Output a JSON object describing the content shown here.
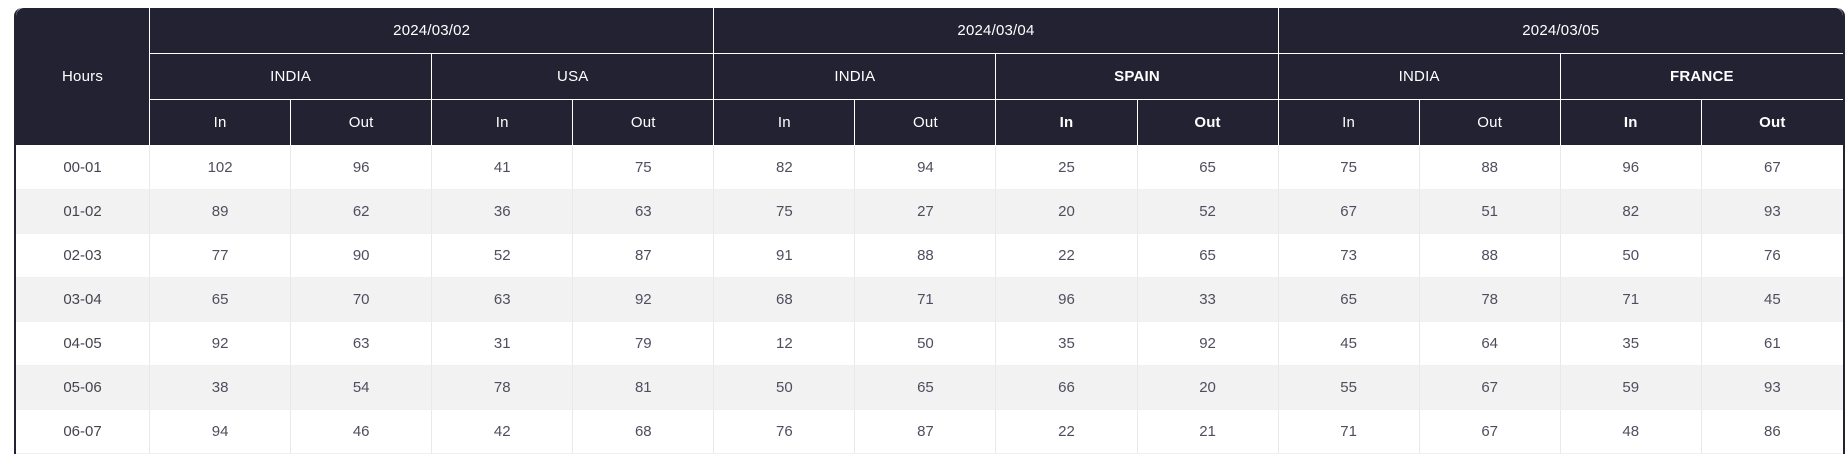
{
  "colors": {
    "header_bg": "#232233",
    "header_text": "#ffffff",
    "header_divider": "#ffffff",
    "outer_border": "#232233",
    "body_text": "#4e4e5e",
    "hours_text": "#44444f",
    "row_bg": "#ffffff",
    "row_alt_bg": "#f2f2f2",
    "cell_border": "#e9e9ed",
    "row_divider": "#f0f0f2"
  },
  "table": {
    "hours_label": "Hours",
    "in_label": "In",
    "out_label": "Out",
    "date_groups": [
      {
        "date": "2024/03/02",
        "countries": [
          {
            "name": "INDIA",
            "bold": false
          },
          {
            "name": "USA",
            "bold": false
          }
        ]
      },
      {
        "date": "2024/03/04",
        "countries": [
          {
            "name": "INDIA",
            "bold": false
          },
          {
            "name": "SPAIN",
            "bold": true
          }
        ]
      },
      {
        "date": "2024/03/05",
        "countries": [
          {
            "name": "INDIA",
            "bold": false
          },
          {
            "name": "FRANCE",
            "bold": true
          }
        ]
      }
    ],
    "rows": [
      {
        "hours": "00-01",
        "values": [
          102,
          96,
          41,
          75,
          82,
          94,
          25,
          65,
          75,
          88,
          96,
          67
        ]
      },
      {
        "hours": "01-02",
        "values": [
          89,
          62,
          36,
          63,
          75,
          27,
          20,
          52,
          67,
          51,
          82,
          93
        ]
      },
      {
        "hours": "02-03",
        "values": [
          77,
          90,
          52,
          87,
          91,
          88,
          22,
          65,
          73,
          88,
          50,
          76
        ]
      },
      {
        "hours": "03-04",
        "values": [
          65,
          70,
          63,
          92,
          68,
          71,
          96,
          33,
          65,
          78,
          71,
          45
        ]
      },
      {
        "hours": "04-05",
        "values": [
          92,
          63,
          31,
          79,
          12,
          50,
          35,
          92,
          45,
          64,
          35,
          61
        ]
      },
      {
        "hours": "05-06",
        "values": [
          38,
          54,
          78,
          81,
          50,
          65,
          66,
          20,
          55,
          67,
          59,
          93
        ]
      },
      {
        "hours": "06-07",
        "values": [
          94,
          46,
          42,
          68,
          76,
          87,
          22,
          21,
          71,
          67,
          48,
          86
        ]
      }
    ]
  }
}
